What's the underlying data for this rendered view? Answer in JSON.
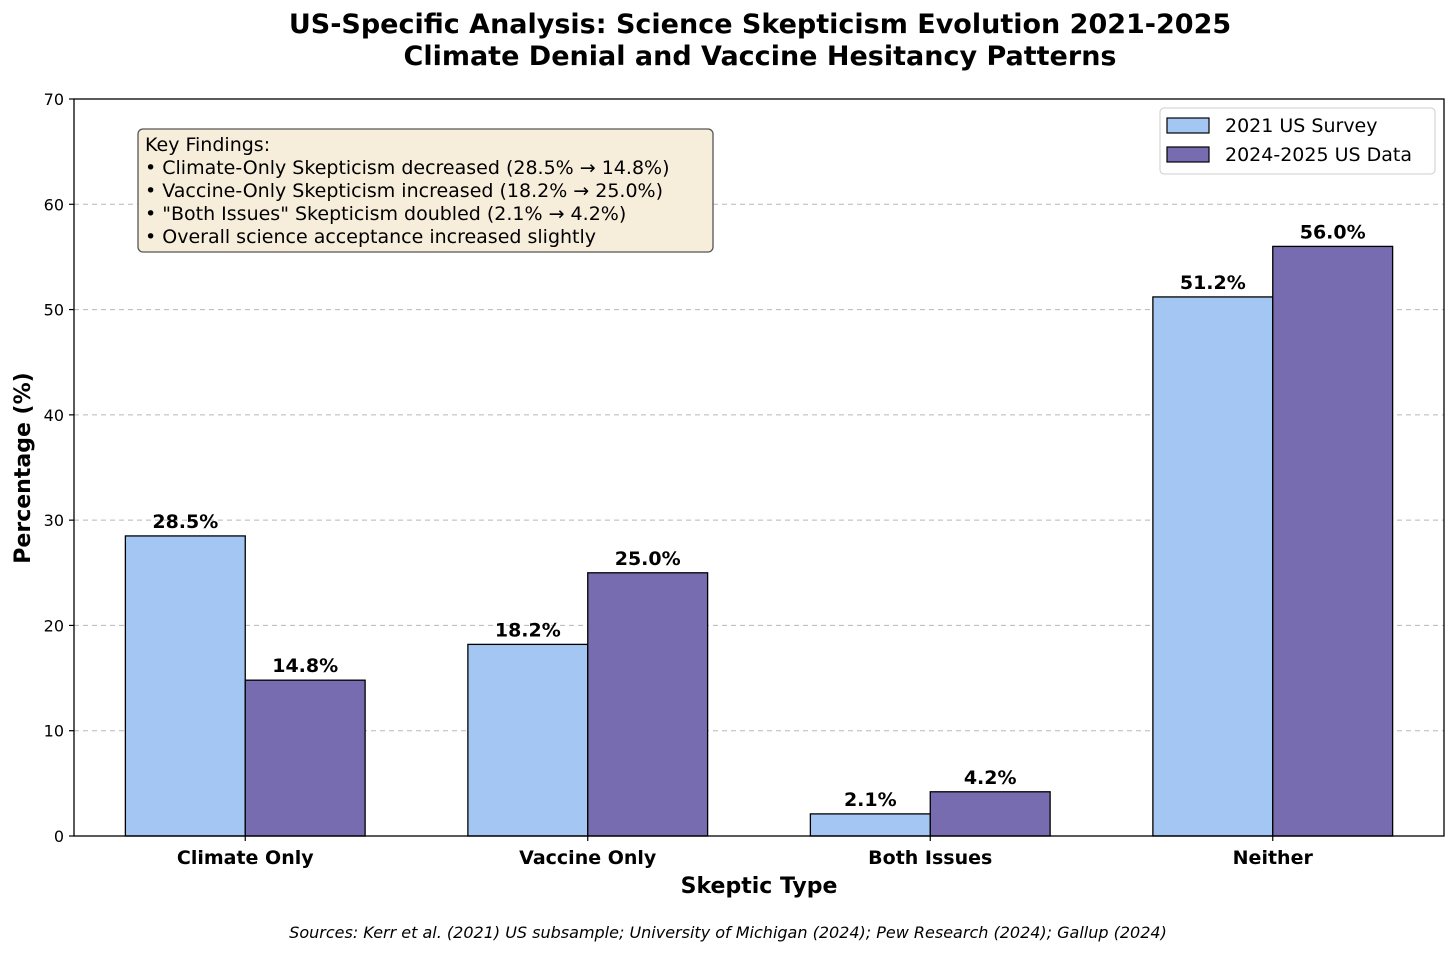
{
  "chart_data": {
    "type": "bar",
    "title_line1": "US-Specific Analysis: Science Skepticism Evolution 2021-2025",
    "title_line2": "Climate Denial and Vaccine Hesitancy Patterns",
    "xlabel": "Skeptic Type",
    "ylabel": "Percentage (%)",
    "ylim": [
      0,
      70
    ],
    "yticks": [
      "0",
      "10",
      "20",
      "30",
      "40",
      "50",
      "60",
      "70"
    ],
    "categories": [
      "Climate Only",
      "Vaccine Only",
      "Both Issues",
      "Neither"
    ],
    "series": [
      {
        "name": "2021 US Survey",
        "color": "#a3c7f2",
        "values": [
          28.5,
          18.2,
          2.1,
          51.2
        ],
        "labels": [
          "28.5%",
          "18.2%",
          "2.1%",
          "51.2%"
        ]
      },
      {
        "name": "2024-2025 US Data",
        "color": "#766caf",
        "values": [
          14.8,
          25.0,
          4.2,
          56.0
        ],
        "labels": [
          "14.8%",
          "25.0%",
          "4.2%",
          "56.0%"
        ]
      }
    ],
    "grid": "y-dashed",
    "legend_position": "top-right",
    "annotation": {
      "lines": [
        "Key Findings:",
        "• Climate-Only Skepticism decreased (28.5% → 14.8%)",
        "• Vaccine-Only Skepticism increased (18.2% → 25.0%)",
        "• \"Both Issues\" Skepticism doubled (2.1% → 4.2%)",
        "• Overall science acceptance increased slightly"
      ],
      "background": "#f7eddb"
    },
    "source_note": "Sources: Kerr et al. (2021) US subsample; University of Michigan (2024); Pew Research (2024); Gallup (2024)"
  }
}
